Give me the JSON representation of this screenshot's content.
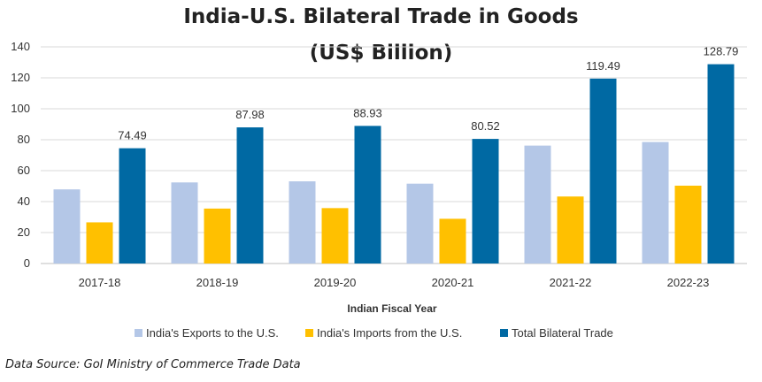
{
  "chart_data": {
    "type": "bar",
    "title": "India-U.S. Bilateral Trade in Goods",
    "subtitle": "(US$ Billion)",
    "xlabel": "Indian Fiscal Year",
    "ylabel": "",
    "ylim": [
      0,
      140
    ],
    "yticks": [
      "0",
      "20",
      "40",
      "60",
      "80",
      "100",
      "120",
      "140"
    ],
    "grid": true,
    "legend_position": "bottom",
    "categories": [
      "2017-18",
      "2018-19",
      "2019-20",
      "2020-21",
      "2021-22",
      "2022-23"
    ],
    "series": [
      {
        "name": "India's Exports to the U.S.",
        "color": "#b4c7e7",
        "values": [
          47.9,
          52.4,
          53.1,
          51.6,
          76.2,
          78.5
        ],
        "labels": null
      },
      {
        "name": "India's Imports from the U.S.",
        "color": "#ffc000",
        "values": [
          26.6,
          35.5,
          35.8,
          28.9,
          43.3,
          50.3
        ],
        "labels": null
      },
      {
        "name": "Total Bilateral Trade",
        "color": "#0069a3",
        "values": [
          74.49,
          87.98,
          88.93,
          80.52,
          119.49,
          128.79
        ],
        "labels": [
          "74.49",
          "87.98",
          "88.93",
          "80.52",
          "119.49",
          "128.79"
        ]
      }
    ]
  },
  "source": "Data Source: GoI Ministry of Commerce Trade Data"
}
